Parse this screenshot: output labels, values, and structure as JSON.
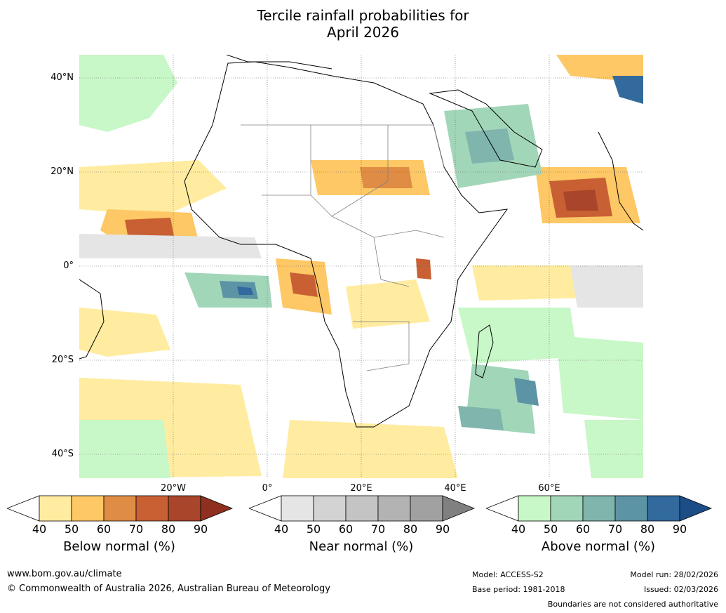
{
  "title_line1": "Tercile rainfall probabilities for",
  "title_line2": "April 2026",
  "lat_labels": [
    "40°N",
    "20°N",
    "0°",
    "20°S",
    "40°S"
  ],
  "lon_labels": [
    "20°W",
    "0°",
    "20°E",
    "40°E",
    "60°E"
  ],
  "colorbars": [
    {
      "title": "Below normal (%)",
      "ticks": [
        "40",
        "50",
        "60",
        "70",
        "80",
        "90"
      ],
      "colors": [
        "#ffffff",
        "#ffeca0",
        "#fdc865",
        "#df8c45",
        "#c86034",
        "#a9452a",
        "#8e2f1f"
      ]
    },
    {
      "title": "Near normal (%)",
      "ticks": [
        "40",
        "50",
        "60",
        "70",
        "80",
        "90"
      ],
      "colors": [
        "#ffffff",
        "#e5e5e5",
        "#d3d3d3",
        "#c4c4c4",
        "#b3b3b3",
        "#a1a1a1",
        "#808080"
      ]
    },
    {
      "title": "Above normal (%)",
      "ticks": [
        "40",
        "50",
        "60",
        "70",
        "80",
        "90"
      ],
      "colors": [
        "#ffffff",
        "#c8f7c8",
        "#a2d6b9",
        "#7fb5ad",
        "#5c94a5",
        "#326a9d",
        "#1d4d87"
      ]
    }
  ],
  "footer": {
    "url": "www.bom.gov.au/climate",
    "copyright": "© Commonwealth of Australia 2026, Australian Bureau of Meteorology",
    "model": "Model: ACCESS-S2",
    "base_period": "Base period: 1981-2018",
    "model_run": "Model run: 28/02/2026",
    "issued": "Issued: 02/03/2026",
    "disclaimer": "Boundaries are not considered authoritative"
  }
}
